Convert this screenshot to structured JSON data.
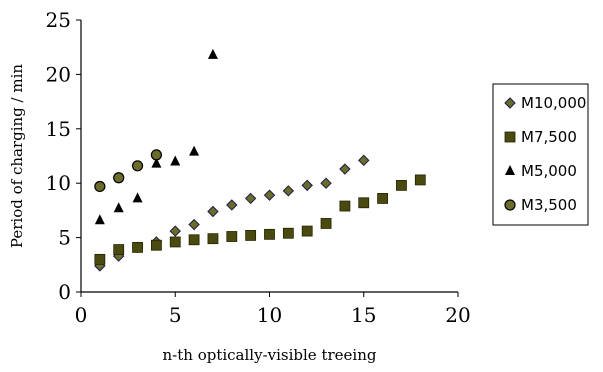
{
  "chart_data": {
    "type": "scatter",
    "xlabel": "n-th optically-visible treeing",
    "ylabel": "Period of charging / min",
    "xlim": [
      0,
      20
    ],
    "ylim": [
      0,
      25
    ],
    "xticks": [
      "0",
      "5",
      "10",
      "15",
      "20"
    ],
    "yticks": [
      "0",
      "5",
      "10",
      "15",
      "20",
      "25"
    ],
    "grid": false,
    "legend_position": "right",
    "series": [
      {
        "name": "M10,000",
        "marker": "diamond",
        "color": "#6b6b2a",
        "x": [
          1,
          2,
          3,
          4,
          5,
          6,
          7,
          8,
          9,
          10,
          11,
          12,
          13,
          14,
          15
        ],
        "y": [
          2.4,
          3.3,
          4.1,
          4.6,
          5.6,
          6.2,
          7.4,
          8.0,
          8.6,
          8.9,
          9.3,
          9.8,
          10.0,
          11.3,
          12.1
        ]
      },
      {
        "name": "M7,500",
        "marker": "square",
        "color": "#4a4a10",
        "x": [
          1,
          2,
          3,
          4,
          5,
          6,
          7,
          8,
          9,
          10,
          11,
          12,
          13,
          14,
          15,
          16,
          17,
          18
        ],
        "y": [
          3.0,
          3.9,
          4.1,
          4.3,
          4.6,
          4.8,
          4.9,
          5.1,
          5.2,
          5.3,
          5.4,
          5.6,
          6.3,
          7.9,
          8.2,
          8.6,
          9.8,
          10.3
        ]
      },
      {
        "name": "M5,000",
        "marker": "triangle",
        "color": "#000000",
        "x": [
          1,
          2,
          3,
          4,
          5,
          6,
          7
        ],
        "y": [
          6.6,
          7.7,
          8.6,
          11.8,
          12.0,
          12.9,
          21.8
        ]
      },
      {
        "name": "M3,500",
        "marker": "circle",
        "color": "#6b6b2a",
        "x": [
          1,
          2,
          3,
          4
        ],
        "y": [
          9.7,
          10.5,
          11.6,
          12.6
        ]
      }
    ]
  }
}
